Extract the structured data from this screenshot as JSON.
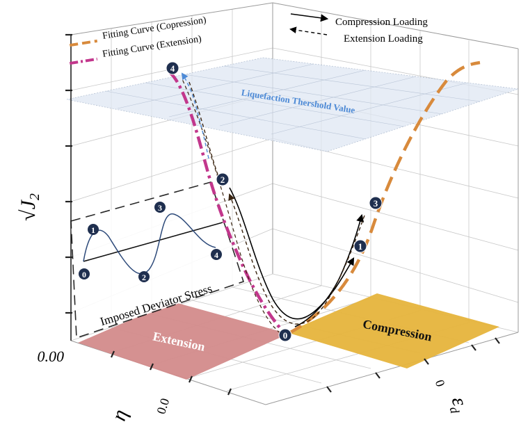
{
  "axes": {
    "y_label": "√J",
    "y_label_sub": "2",
    "y_tick_zero": "0.00",
    "eta_label": "η",
    "eta_tick_zero": "0.0",
    "eps_label": "ε",
    "eps_label_sub": "d",
    "eps_tick_zero": "0"
  },
  "legend": {
    "fit_compression": "Fitting Curve (Copression)",
    "fit_extension": "Fitting Curve (Extension)",
    "compression_loading": "Compression Loading",
    "extension_loading": "Extension Loading"
  },
  "plane_label": "Liquefaction Thershold Value",
  "regions": {
    "extension": "Extension",
    "compression": "Compression"
  },
  "inset": {
    "title": "Imposed Deviator Stress",
    "points": [
      "0",
      "1",
      "2",
      "3",
      "4"
    ]
  },
  "markers": [
    "0",
    "1",
    "2",
    "3",
    "4"
  ],
  "colors": {
    "compression_fit": "#d88a3c",
    "extension_fit": "#c2378c",
    "extension_region": "#d38b8b",
    "compression_region": "#e6b43c",
    "threshold_plane": "#dfe7f3",
    "threshold_label": "#4d8ad6",
    "marker": "#1f2f4f"
  }
}
